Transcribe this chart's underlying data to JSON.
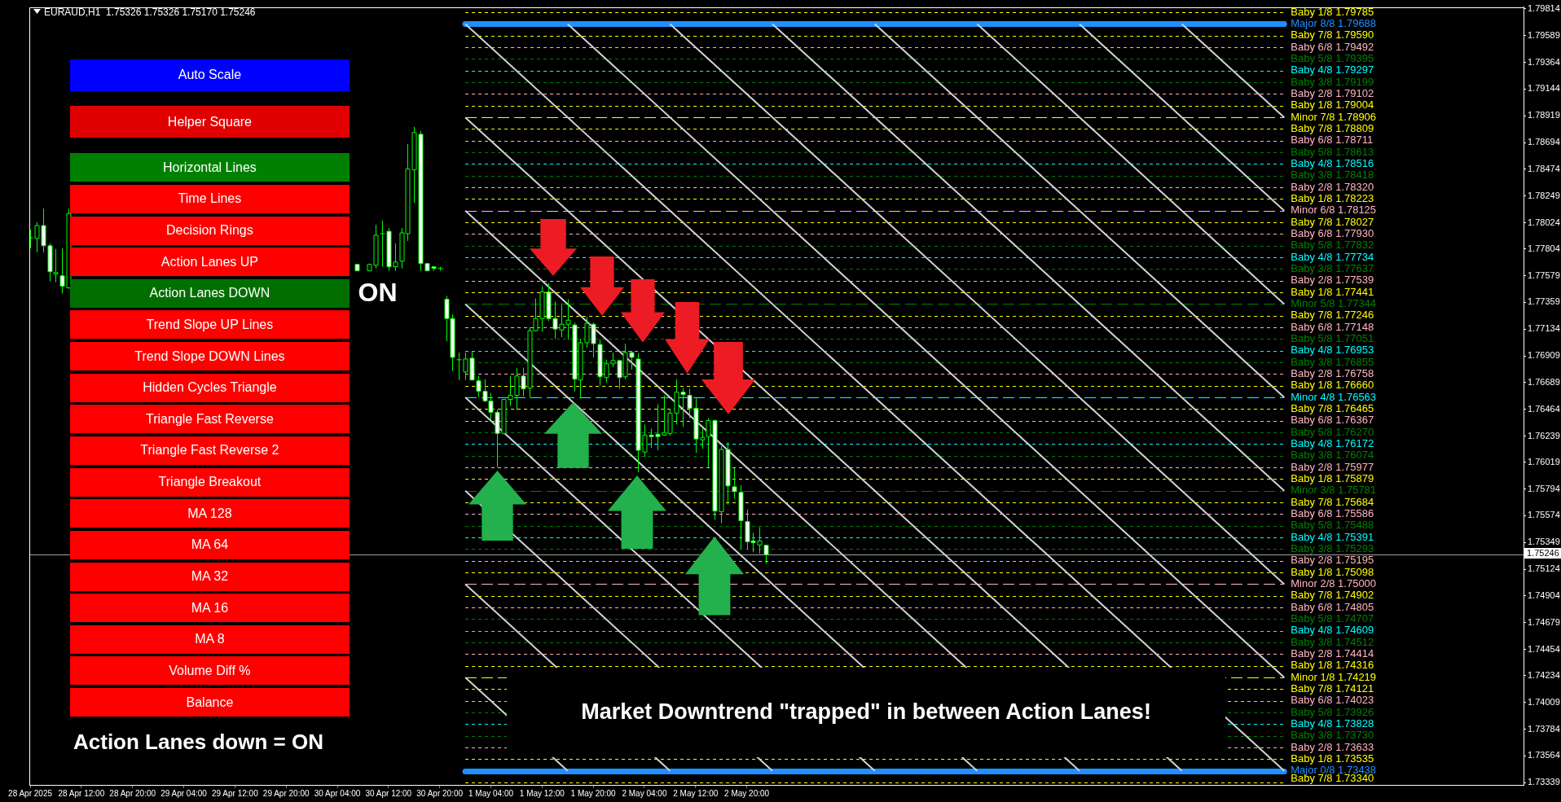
{
  "chart_data": {
    "type": "candlestick",
    "title": "EURAUD,H1  1.75326 1.75326 1.75170 1.75246",
    "x": [
      "2025-04-28T04:00",
      "2025-04-28T05:00",
      "2025-04-28T06:00",
      "2025-04-28T07:00",
      "2025-04-28T08:00",
      "2025-04-28T09:00",
      "2025-04-28T10:00",
      "2025-04-30T07:00",
      "2025-04-30T09:00",
      "2025-04-30T10:00",
      "2025-04-30T11:00",
      "2025-04-30T12:00",
      "2025-04-30T13:00",
      "2025-04-30T14:00",
      "2025-04-30T15:00",
      "2025-04-30T16:00",
      "2025-04-30T17:00",
      "2025-04-30T18:00",
      "2025-04-30T19:00",
      "2025-04-30T20:00",
      "2025-04-30T21:00",
      "2025-04-30T22:00",
      "2025-04-30T23:00",
      "2025-05-01T00:00",
      "2025-05-01T01:00",
      "2025-05-01T02:00",
      "2025-05-01T03:00",
      "2025-05-01T04:00",
      "2025-05-01T05:00",
      "2025-05-01T06:00",
      "2025-05-01T07:00",
      "2025-05-01T08:00",
      "2025-05-01T09:00",
      "2025-05-01T10:00",
      "2025-05-01T11:00",
      "2025-05-01T12:00",
      "2025-05-01T13:00",
      "2025-05-01T14:00",
      "2025-05-01T15:00",
      "2025-05-01T16:00",
      "2025-05-01T17:00",
      "2025-05-01T18:00",
      "2025-05-01T19:00",
      "2025-05-01T20:00",
      "2025-05-01T21:00",
      "2025-05-01T22:00",
      "2025-05-01T23:00",
      "2025-05-02T00:00",
      "2025-05-02T01:00",
      "2025-05-02T02:00",
      "2025-05-02T03:00",
      "2025-05-02T04:00",
      "2025-05-02T05:00",
      "2025-05-02T06:00",
      "2025-05-02T07:00",
      "2025-05-02T08:00",
      "2025-05-02T09:00",
      "2025-05-02T10:00",
      "2025-05-02T11:00",
      "2025-05-02T12:00",
      "2025-05-02T13:00",
      "2025-05-02T14:00",
      "2025-05-02T15:00",
      "2025-05-02T16:00",
      "2025-05-02T17:00",
      "2025-05-02T18:00",
      "2025-05-02T19:00",
      "2025-05-02T20:00",
      "2025-05-02T21:00",
      "2025-05-02T22:00",
      "2025-05-02T23:00"
    ],
    "ohlc": [
      [
        1.77893,
        1.77967,
        1.77811,
        1.77899
      ],
      [
        1.77893,
        1.78031,
        1.77777,
        1.78001
      ],
      [
        1.78001,
        1.78143,
        1.77777,
        1.77832
      ],
      [
        1.77832,
        1.77852,
        1.77534,
        1.77615
      ],
      [
        1.77595,
        1.77805,
        1.77527,
        1.77608
      ],
      [
        1.77581,
        1.77811,
        1.77432,
        1.77493
      ],
      [
        1.7748,
        1.78143,
        1.77473,
        1.78102
      ],
      [
        1.77676,
        1.77676,
        1.77622,
        1.77622
      ],
      [
        1.77622,
        1.77683,
        1.77622,
        1.77676
      ],
      [
        1.77669,
        1.78008,
        1.77642,
        1.7792
      ],
      [
        1.77933,
        1.78041,
        1.77656,
        1.77933
      ],
      [
        1.77953,
        1.7798,
        1.77622,
        1.77656
      ],
      [
        1.77656,
        1.77852,
        1.77622,
        1.77696
      ],
      [
        1.77703,
        1.7798,
        1.77642,
        1.7794
      ],
      [
        1.77933,
        1.78684,
        1.77872,
        1.78474
      ],
      [
        1.78468,
        1.78826,
        1.7819,
        1.78779
      ],
      [
        1.78765,
        1.78792,
        1.77622,
        1.77683
      ],
      [
        1.77683,
        1.77683,
        1.77622,
        1.77622
      ],
      [
        1.77656,
        1.77656,
        1.77622,
        1.77642
      ],
      [
        1.77642,
        1.77656,
        1.77622,
        1.77642
      ],
      [
        1.77385,
        1.77412,
        1.77033,
        1.77223
      ],
      [
        1.77223,
        1.77257,
        1.76783,
        1.76898
      ],
      [
        1.76878,
        1.76938,
        1.76708,
        1.76878
      ],
      [
        1.76776,
        1.76938,
        1.76708,
        1.76884
      ],
      [
        1.76891,
        1.76945,
        1.76708,
        1.76708
      ],
      [
        1.76702,
        1.76742,
        1.76566,
        1.76614
      ],
      [
        1.76614,
        1.76715,
        1.76526,
        1.76533
      ],
      [
        1.76533,
        1.766,
        1.76377,
        1.76438
      ],
      [
        1.76438,
        1.76458,
        1.75978,
        1.76262
      ],
      [
        1.76262,
        1.76546,
        1.76255,
        1.76546
      ],
      [
        1.76546,
        1.76742,
        1.76492,
        1.7658
      ],
      [
        1.7658,
        1.7681,
        1.76458,
        1.76742
      ],
      [
        1.76742,
        1.7681,
        1.76573,
        1.76634
      ],
      [
        1.76641,
        1.77148,
        1.7656,
        1.77121
      ],
      [
        1.77121,
        1.77392,
        1.77114,
        1.77223
      ],
      [
        1.77223,
        1.77493,
        1.77114,
        1.77446
      ],
      [
        1.77446,
        1.7752,
        1.77202,
        1.77223
      ],
      [
        1.77223,
        1.77365,
        1.77054,
        1.77135
      ],
      [
        1.77128,
        1.77351,
        1.77067,
        1.77175
      ],
      [
        1.77175,
        1.77385,
        1.77047,
        1.77209
      ],
      [
        1.77169,
        1.77189,
        1.76614,
        1.76715
      ],
      [
        1.76708,
        1.77054,
        1.76566,
        1.7702
      ],
      [
        1.7702,
        1.77236,
        1.76979,
        1.77182
      ],
      [
        1.77175,
        1.77189,
        1.76898,
        1.77013
      ],
      [
        1.77006,
        1.77047,
        1.76661,
        1.76736
      ],
      [
        1.76729,
        1.76878,
        1.76688,
        1.76844
      ],
      [
        1.76844,
        1.76938,
        1.76817,
        1.76871
      ],
      [
        1.76871,
        1.76878,
        1.76634,
        1.76729
      ],
      [
        1.76736,
        1.77013,
        1.76715,
        1.76938
      ],
      [
        1.76938,
        1.76952,
        1.76796,
        1.76898
      ],
      [
        1.76884,
        1.76932,
        1.75937,
        1.7612
      ],
      [
        1.76106,
        1.76336,
        1.76066,
        1.76248
      ],
      [
        1.76248,
        1.76302,
        1.7614,
        1.76235
      ],
      [
        1.76255,
        1.76505,
        1.7612,
        1.76235
      ],
      [
        1.76248,
        1.7658,
        1.76242,
        1.76269
      ],
      [
        1.76262,
        1.76465,
        1.76242,
        1.76431
      ],
      [
        1.76431,
        1.76715,
        1.76336,
        1.76607
      ],
      [
        1.76607,
        1.76641,
        1.76316,
        1.76587
      ],
      [
        1.7658,
        1.76634,
        1.7639,
        1.76472
      ],
      [
        1.76472,
        1.7656,
        1.761,
        1.76215
      ],
      [
        1.76208,
        1.76302,
        1.76133,
        1.76228
      ],
      [
        1.76235,
        1.7639,
        1.75978,
        1.7637
      ],
      [
        1.7637,
        1.76377,
        1.75538,
        1.75612
      ],
      [
        1.75606,
        1.76154,
        1.75511,
        1.76127
      ],
      [
        1.76127,
        1.76187,
        1.75666,
        1.75822
      ],
      [
        1.75815,
        1.75971,
        1.75714,
        1.75775
      ],
      [
        1.75768,
        1.75829,
        1.75294,
        1.75531
      ],
      [
        1.75524,
        1.75626,
        1.75288,
        1.75355
      ],
      [
        1.75362,
        1.7543,
        1.75267,
        1.75348
      ],
      [
        1.75328,
        1.75477,
        1.75254,
        1.75362
      ],
      [
        1.75326,
        1.75326,
        1.7517,
        1.75246
      ]
    ],
    "series": [
      {
        "type": "line",
        "color": "#d3d3d3",
        "x": [
          "2025-05-01T00:00",
          "2025-05-06T08:00"
        ],
        "values": [
          1.79688,
          1.73438
        ]
      },
      {
        "type": "line",
        "color": "#d3d3d3",
        "x": [
          "2025-05-01T00:00",
          "2025-05-05T16:00"
        ],
        "values": [
          1.78906,
          1.73438
        ]
      },
      {
        "type": "line",
        "color": "#d3d3d3",
        "x": [
          "2025-05-01T00:00",
          "2025-05-05T00:00"
        ],
        "values": [
          1.78125,
          1.73438
        ]
      },
      {
        "type": "line",
        "color": "#d3d3d3",
        "x": [
          "2025-05-01T00:00",
          "2025-05-04T08:00"
        ],
        "values": [
          1.77344,
          1.73438
        ]
      },
      {
        "type": "line",
        "color": "#d3d3d3",
        "x": [
          "2025-05-01T00:00",
          "2025-05-03T16:00"
        ],
        "values": [
          1.76563,
          1.73438
        ]
      },
      {
        "type": "line",
        "color": "#d3d3d3",
        "x": [
          "2025-05-01T00:00",
          "2025-05-03T00:00"
        ],
        "values": [
          1.75781,
          1.73438
        ]
      },
      {
        "type": "line",
        "color": "#d3d3d3",
        "x": [
          "2025-05-01T00:00",
          "2025-05-02T08:00"
        ],
        "values": [
          1.75,
          1.73438
        ]
      },
      {
        "type": "line",
        "color": "#d3d3d3",
        "x": [
          "2025-05-01T00:00",
          "2025-05-01T16:00"
        ],
        "values": [
          1.74219,
          1.73438
        ]
      },
      {
        "type": "line",
        "color": "#d3d3d3",
        "x": [
          "2025-05-01T16:00",
          "2025-05-06T08:00"
        ],
        "values": [
          1.79688,
          1.74219
        ]
      },
      {
        "type": "line",
        "color": "#d3d3d3",
        "x": [
          "2025-05-02T08:00",
          "2025-05-06T08:00"
        ],
        "values": [
          1.79688,
          1.75
        ]
      },
      {
        "type": "line",
        "color": "#d3d3d3",
        "x": [
          "2025-05-03T00:00",
          "2025-05-06T08:00"
        ],
        "values": [
          1.79688,
          1.75781
        ]
      },
      {
        "type": "line",
        "color": "#d3d3d3",
        "x": [
          "2025-05-03T16:00",
          "2025-05-06T08:00"
        ],
        "values": [
          1.79688,
          1.76563
        ]
      },
      {
        "type": "line",
        "color": "#d3d3d3",
        "x": [
          "2025-05-04T08:00",
          "2025-05-06T08:00"
        ],
        "values": [
          1.79688,
          1.77344
        ]
      },
      {
        "type": "line",
        "color": "#d3d3d3",
        "x": [
          "2025-05-05T00:00",
          "2025-05-06T08:00"
        ],
        "values": [
          1.79688,
          1.78125
        ]
      },
      {
        "type": "line",
        "color": "#d3d3d3",
        "x": [
          "2025-05-05T16:00",
          "2025-05-06T08:00"
        ],
        "values": [
          1.79688,
          1.78906
        ]
      }
    ],
    "xlim": [
      "2025-04-28T03:52",
      "2025-05-07T21:24"
    ],
    "xticks": [
      {
        "value": "2025-04-28T04:00",
        "label": "28 Apr 2025"
      },
      {
        "value": "2025-04-28T12:00",
        "label": "28 Apr 12:00"
      },
      {
        "value": "2025-04-28T20:00",
        "label": "28 Apr 20:00"
      },
      {
        "value": "2025-04-29T04:00",
        "label": "29 Apr 04:00"
      },
      {
        "value": "2025-04-29T12:00",
        "label": "29 Apr 12:00"
      },
      {
        "value": "2025-04-29T20:00",
        "label": "29 Apr 20:00"
      },
      {
        "value": "2025-04-30T04:00",
        "label": "30 Apr 04:00"
      },
      {
        "value": "2025-04-30T12:00",
        "label": "30 Apr 12:00"
      },
      {
        "value": "2025-04-30T20:00",
        "label": "30 Apr 20:00"
      },
      {
        "value": "2025-05-01T04:00",
        "label": "1 May 04:00"
      },
      {
        "value": "2025-05-01T12:00",
        "label": "1 May 12:00"
      },
      {
        "value": "2025-05-01T20:00",
        "label": "1 May 20:00"
      },
      {
        "value": "2025-05-02T04:00",
        "label": "2 May 04:00"
      },
      {
        "value": "2025-05-02T12:00",
        "label": "2 May 12:00"
      },
      {
        "value": "2025-05-02T20:00",
        "label": "2 May 20:00"
      }
    ],
    "ylim": [
      1.7332,
      1.7983
    ],
    "yticks": [
      1.79814,
      1.79589,
      1.79364,
      1.79144,
      1.78919,
      1.78694,
      1.78474,
      1.78249,
      1.78024,
      1.77804,
      1.77579,
      1.77359,
      1.77134,
      1.76909,
      1.76689,
      1.76464,
      1.76239,
      1.76019,
      1.75794,
      1.75574,
      1.75349,
      1.75124,
      1.74904,
      1.74679,
      1.74454,
      1.74234,
      1.74009,
      1.73784,
      1.73564,
      1.73339
    ],
    "ref_lines": [
      {
        "axis": "y",
        "value": 1.79785,
        "label": "Baby 1/8 1.79785",
        "color": "#ffff00",
        "line_style": "dotted"
      },
      {
        "axis": "y",
        "value": 1.79688,
        "label": "Major 8/8 1.79688",
        "color": "#1e90ff",
        "line_style": "solid"
      },
      {
        "axis": "y",
        "value": 1.7959,
        "label": "Baby 7/8 1.79590",
        "color": "#ffff00",
        "line_style": "dotted"
      },
      {
        "axis": "y",
        "value": 1.79492,
        "label": "Baby 6/8 1.79492",
        "color": "#ffb6c1",
        "line_style": "dotted"
      },
      {
        "axis": "y",
        "value": 1.79395,
        "label": "Baby 5/8 1.79395",
        "color": "#008000",
        "line_style": "dotted"
      },
      {
        "axis": "y",
        "value": 1.79297,
        "label": "Baby 4/8 1.79297",
        "color": "#00ffff",
        "line_style": "dotted"
      },
      {
        "axis": "y",
        "value": 1.79199,
        "label": "Baby 3/8 1.79199",
        "color": "#008000",
        "line_style": "dotted"
      },
      {
        "axis": "y",
        "value": 1.79102,
        "label": "Baby 2/8 1.79102",
        "color": "#ffb6c1",
        "line_style": "dotted"
      },
      {
        "axis": "y",
        "value": 1.79004,
        "label": "Baby 1/8 1.79004",
        "color": "#ffff00",
        "line_style": "dotted"
      },
      {
        "axis": "y",
        "value": 1.78906,
        "label": "Minor 7/8 1.78906",
        "color": "#ffff00",
        "line_style": "dashed"
      },
      {
        "axis": "y",
        "value": 1.78809,
        "label": "Baby 7/8 1.78809",
        "color": "#ffff00",
        "line_style": "dotted"
      },
      {
        "axis": "y",
        "value": 1.78711,
        "label": "Baby 6/8 1.78711",
        "color": "#ffb6c1",
        "line_style": "dotted"
      },
      {
        "axis": "y",
        "value": 1.78613,
        "label": "Baby 5/8 1.78613",
        "color": "#008000",
        "line_style": "dotted"
      },
      {
        "axis": "y",
        "value": 1.78516,
        "label": "Baby 4/8 1.78516",
        "color": "#00ffff",
        "line_style": "dotted"
      },
      {
        "axis": "y",
        "value": 1.78418,
        "label": "Baby 3/8 1.78418",
        "color": "#008000",
        "line_style": "dotted"
      },
      {
        "axis": "y",
        "value": 1.7832,
        "label": "Baby 2/8 1.78320",
        "color": "#ffb6c1",
        "line_style": "dotted"
      },
      {
        "axis": "y",
        "value": 1.78223,
        "label": "Baby 1/8 1.78223",
        "color": "#ffff00",
        "line_style": "dotted"
      },
      {
        "axis": "y",
        "value": 1.78125,
        "label": "Minor 6/8 1.78125",
        "color": "#ffb6c1",
        "line_style": "dashed"
      },
      {
        "axis": "y",
        "value": 1.78027,
        "label": "Baby 7/8 1.78027",
        "color": "#ffff00",
        "line_style": "dotted"
      },
      {
        "axis": "y",
        "value": 1.7793,
        "label": "Baby 6/8 1.77930",
        "color": "#ffb6c1",
        "line_style": "dotted"
      },
      {
        "axis": "y",
        "value": 1.77832,
        "label": "Baby 5/8 1.77832",
        "color": "#008000",
        "line_style": "dotted"
      },
      {
        "axis": "y",
        "value": 1.77734,
        "label": "Baby 4/8 1.77734",
        "color": "#00ffff",
        "line_style": "dotted"
      },
      {
        "axis": "y",
        "value": 1.77637,
        "label": "Baby 3/8 1.77637",
        "color": "#008000",
        "line_style": "dotted"
      },
      {
        "axis": "y",
        "value": 1.77539,
        "label": "Baby 2/8 1.77539",
        "color": "#ffb6c1",
        "line_style": "dotted"
      },
      {
        "axis": "y",
        "value": 1.77441,
        "label": "Baby 1/8 1.77441",
        "color": "#ffff00",
        "line_style": "dotted"
      },
      {
        "axis": "y",
        "value": 1.77344,
        "label": "Minor 5/8 1.77344",
        "color": "#008000",
        "line_style": "dashed"
      },
      {
        "axis": "y",
        "value": 1.77246,
        "label": "Baby 7/8 1.77246",
        "color": "#ffff00",
        "line_style": "dotted"
      },
      {
        "axis": "y",
        "value": 1.77148,
        "label": "Baby 6/8 1.77148",
        "color": "#ffb6c1",
        "line_style": "dotted"
      },
      {
        "axis": "y",
        "value": 1.77051,
        "label": "Baby 5/8 1.77051",
        "color": "#008000",
        "line_style": "dotted"
      },
      {
        "axis": "y",
        "value": 1.76953,
        "label": "Baby 4/8 1.76953",
        "color": "#00ffff",
        "line_style": "dotted"
      },
      {
        "axis": "y",
        "value": 1.76855,
        "label": "Baby 3/8 1.76855",
        "color": "#008000",
        "line_style": "dotted"
      },
      {
        "axis": "y",
        "value": 1.76758,
        "label": "Baby 2/8 1.76758",
        "color": "#ffb6c1",
        "line_style": "dotted"
      },
      {
        "axis": "y",
        "value": 1.7666,
        "label": "Baby 1/8 1.76660",
        "color": "#ffff00",
        "line_style": "dotted"
      },
      {
        "axis": "y",
        "value": 1.76563,
        "label": "Minor 4/8 1.76563",
        "color": "#00ffff",
        "line_style": "dashed"
      },
      {
        "axis": "y",
        "value": 1.76465,
        "label": "Baby 7/8 1.76465",
        "color": "#ffff00",
        "line_style": "dotted"
      },
      {
        "axis": "y",
        "value": 1.76367,
        "label": "Baby 6/8 1.76367",
        "color": "#ffb6c1",
        "line_style": "dotted"
      },
      {
        "axis": "y",
        "value": 1.7627,
        "label": "Baby 5/8 1.76270",
        "color": "#008000",
        "line_style": "dotted"
      },
      {
        "axis": "y",
        "value": 1.76172,
        "label": "Baby 4/8 1.76172",
        "color": "#00ffff",
        "line_style": "dotted"
      },
      {
        "axis": "y",
        "value": 1.76074,
        "label": "Baby 3/8 1.76074",
        "color": "#008000",
        "line_style": "dotted"
      },
      {
        "axis": "y",
        "value": 1.75977,
        "label": "Baby 2/8 1.75977",
        "color": "#ffb6c1",
        "line_style": "dotted"
      },
      {
        "axis": "y",
        "value": 1.75879,
        "label": "Baby 1/8 1.75879",
        "color": "#ffff00",
        "line_style": "dotted"
      },
      {
        "axis": "y",
        "value": 1.75781,
        "label": "Minor 3/8 1.75781",
        "color": "#008000",
        "line_style": "dashed"
      },
      {
        "axis": "y",
        "value": 1.75684,
        "label": "Baby 7/8 1.75684",
        "color": "#ffff00",
        "line_style": "dotted"
      },
      {
        "axis": "y",
        "value": 1.75586,
        "label": "Baby 6/8 1.75586",
        "color": "#ffb6c1",
        "line_style": "dotted"
      },
      {
        "axis": "y",
        "value": 1.75488,
        "label": "Baby 5/8 1.75488",
        "color": "#008000",
        "line_style": "dotted"
      },
      {
        "axis": "y",
        "value": 1.75391,
        "label": "Baby 4/8 1.75391",
        "color": "#00ffff",
        "line_style": "dotted"
      },
      {
        "axis": "y",
        "value": 1.75293,
        "label": "Baby 3/8 1.75293",
        "color": "#008000",
        "line_style": "dotted"
      },
      {
        "axis": "y",
        "value": 1.75195,
        "label": "Baby 2/8 1.75195",
        "color": "#ffb6c1",
        "line_style": "dotted"
      },
      {
        "axis": "y",
        "value": 1.75098,
        "label": "Baby 1/8 1.75098",
        "color": "#ffff00",
        "line_style": "dotted"
      },
      {
        "axis": "y",
        "value": 1.75,
        "label": "Minor 2/8 1.75000",
        "color": "#ffb6c1",
        "line_style": "dashed"
      },
      {
        "axis": "y",
        "value": 1.74902,
        "label": "Baby 7/8 1.74902",
        "color": "#ffff00",
        "line_style": "dotted"
      },
      {
        "axis": "y",
        "value": 1.74805,
        "label": "Baby 6/8 1.74805",
        "color": "#ffb6c1",
        "line_style": "dotted"
      },
      {
        "axis": "y",
        "value": 1.74707,
        "label": "Baby 5/8 1.74707",
        "color": "#008000",
        "line_style": "dotted"
      },
      {
        "axis": "y",
        "value": 1.74609,
        "label": "Baby 4/8 1.74609",
        "color": "#00ffff",
        "line_style": "dotted"
      },
      {
        "axis": "y",
        "value": 1.74512,
        "label": "Baby 3/8 1.74512",
        "color": "#008000",
        "line_style": "dotted"
      },
      {
        "axis": "y",
        "value": 1.74414,
        "label": "Baby 2/8 1.74414",
        "color": "#ffb6c1",
        "line_style": "dotted"
      },
      {
        "axis": "y",
        "value": 1.74316,
        "label": "Baby 1/8 1.74316",
        "color": "#ffff00",
        "line_style": "dotted"
      },
      {
        "axis": "y",
        "value": 1.74219,
        "label": "Minor 1/8 1.74219",
        "color": "#ffff00",
        "line_style": "dashed"
      },
      {
        "axis": "y",
        "value": 1.74121,
        "label": "Baby 7/8 1.74121",
        "color": "#ffff00",
        "line_style": "dotted"
      },
      {
        "axis": "y",
        "value": 1.74023,
        "label": "Baby 6/8 1.74023",
        "color": "#ffb6c1",
        "line_style": "dotted"
      },
      {
        "axis": "y",
        "value": 1.73926,
        "label": "Baby 5/8 1.73926",
        "color": "#008000",
        "line_style": "dotted"
      },
      {
        "axis": "y",
        "value": 1.73828,
        "label": "Baby 4/8 1.73828",
        "color": "#00ffff",
        "line_style": "dotted"
      },
      {
        "axis": "y",
        "value": 1.7373,
        "label": "Baby 3/8 1.73730",
        "color": "#008000",
        "line_style": "dotted"
      },
      {
        "axis": "y",
        "value": 1.73633,
        "label": "Baby 2/8 1.73633",
        "color": "#ffb6c1",
        "line_style": "dotted"
      },
      {
        "axis": "y",
        "value": 1.73535,
        "label": "Baby 1/8 1.73535",
        "color": "#ffff00",
        "line_style": "dotted"
      },
      {
        "axis": "y",
        "value": 1.73438,
        "label": "Major 0/8 1.73438",
        "color": "#1e90ff",
        "line_style": "solid"
      },
      {
        "axis": "y",
        "value": 1.7334,
        "label": "Baby 7/8 1.73340",
        "color": "#ffff00",
        "line_style": "dotted"
      },
      {
        "axis": "y",
        "value": 1.75246,
        "color": "#a0a0a0",
        "line_style": "solid"
      }
    ],
    "annotations": [
      "Auto Scale",
      "Helper Square",
      "Horizontal Lines",
      "Time Lines",
      "Decision Rings",
      "Action Lanes UP",
      "Action Lanes DOWN",
      "Trend Slope UP Lines",
      "Trend Slope DOWN Lines",
      "Hidden Cycles Triangle",
      "Triangle Fast Reverse",
      "Triangle Fast Reverse 2",
      "Triangle Breakout",
      "MA 128",
      "MA 64",
      "MA 32",
      "MA 16",
      "MA 8",
      "Volume Diff %",
      "Balance",
      "ON",
      "Action Lanes down = ON",
      "Market Downtrend \"trapped\" in between Action Lanes!",
      "1.75246"
    ]
  }
}
